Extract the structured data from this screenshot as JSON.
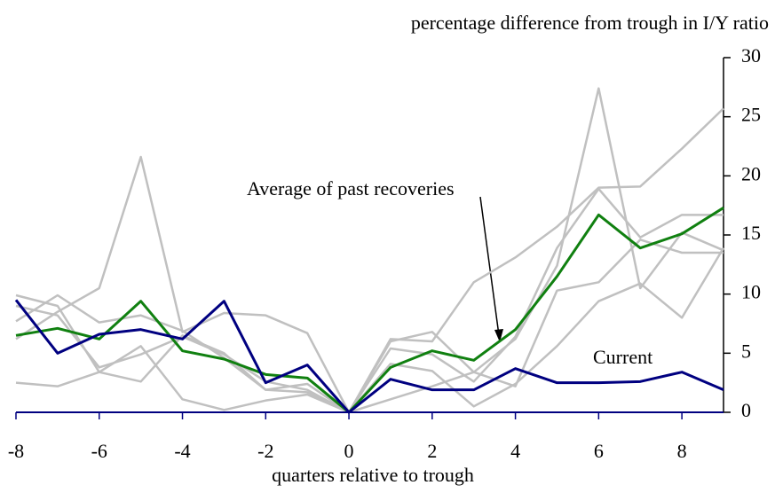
{
  "chart_data": {
    "type": "line",
    "title": "percentage difference from trough in I/Y ratio",
    "x_label": "quarters relative to trough",
    "x": [
      -8,
      -7,
      -6,
      -5,
      -4,
      -3,
      -2,
      -1,
      0,
      1,
      2,
      3,
      4,
      5,
      6,
      7,
      8,
      9
    ],
    "xlim": [
      -8,
      9
    ],
    "xticks": [
      -8,
      -6,
      -4,
      -2,
      0,
      2,
      4,
      6,
      8
    ],
    "ylim": [
      0,
      30
    ],
    "yticks": [
      0,
      5,
      10,
      15,
      20,
      25,
      30
    ],
    "series": [
      {
        "color": "#c0c0c0",
        "values": [
          6.2,
          8.5,
          10.5,
          21.6,
          6.8,
          8.4,
          8.2,
          6.7,
          0,
          6.0,
          6.8,
          3.4,
          6.2,
          12.4,
          27.4,
          10.5,
          15.2,
          13.7
        ]
      },
      {
        "color": "#c0c0c0",
        "values": [
          9.9,
          9.0,
          3.4,
          2.6,
          6.5,
          5.0,
          1.9,
          1.7,
          0,
          6.2,
          6.0,
          11.0,
          13.1,
          15.7,
          19.0,
          19.1,
          22.3,
          25.7
        ]
      },
      {
        "color": "#c0c0c0",
        "values": [
          7.7,
          9.9,
          7.6,
          8.2,
          6.9,
          4.6,
          1.9,
          2.4,
          0,
          5.4,
          4.9,
          2.6,
          6.4,
          13.9,
          18.9,
          14.8,
          16.7,
          16.7
        ]
      },
      {
        "color": "#c0c0c0",
        "values": [
          2.5,
          2.2,
          3.4,
          5.6,
          1.1,
          0.2,
          1.0,
          1.5,
          0,
          4.1,
          3.5,
          0.5,
          2.4,
          5.6,
          9.4,
          10.9,
          8.0,
          13.9
        ]
      },
      {
        "color": "#c0c0c0",
        "values": [
          9.0,
          8.2,
          3.8,
          4.9,
          6.4,
          4.9,
          2.6,
          1.9,
          0,
          1.1,
          2.2,
          3.4,
          2.2,
          10.3,
          11.0,
          14.6,
          13.5,
          13.5
        ]
      },
      {
        "name": "Average of past recoveries",
        "color": "#108010",
        "values": [
          6.5,
          7.1,
          6.2,
          9.4,
          5.2,
          4.5,
          3.2,
          2.9,
          0,
          3.8,
          5.2,
          4.4,
          7.0,
          11.5,
          16.7,
          13.9,
          15.1,
          17.3
        ]
      },
      {
        "name": "Current",
        "color": "#000080",
        "values": [
          9.5,
          5.0,
          6.6,
          7.0,
          6.2,
          9.4,
          2.5,
          4.0,
          0,
          2.8,
          1.9,
          1.9,
          3.7,
          2.5,
          2.5,
          2.6,
          3.4,
          1.9
        ]
      }
    ]
  }
}
